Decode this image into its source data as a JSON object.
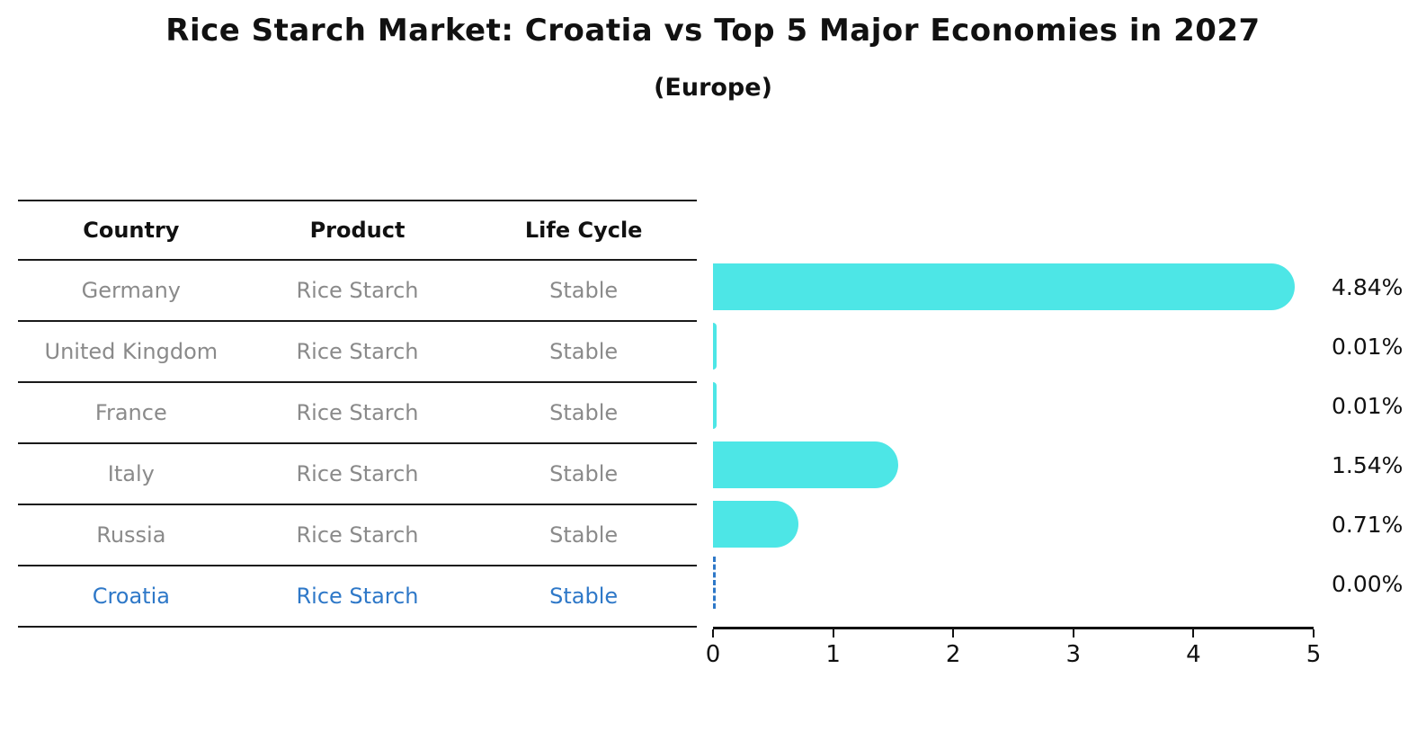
{
  "title": "Rice Starch Market: Croatia vs Top 5 Major Economies in 2027",
  "subtitle": "(Europe)",
  "table": {
    "columns": [
      "Country",
      "Product",
      "Life Cycle"
    ],
    "rows": [
      {
        "country": "Germany",
        "product": "Rice Starch",
        "life_cycle": "Stable",
        "highlight": false
      },
      {
        "country": "United Kingdom",
        "product": "Rice Starch",
        "life_cycle": "Stable",
        "highlight": false
      },
      {
        "country": "France",
        "product": "Rice Starch",
        "life_cycle": "Stable",
        "highlight": false
      },
      {
        "country": "Italy",
        "product": "Rice Starch",
        "life_cycle": "Stable",
        "highlight": false
      },
      {
        "country": "Russia",
        "product": "Rice Starch",
        "life_cycle": "Stable",
        "highlight": false
      },
      {
        "country": "Croatia",
        "product": "Rice Starch",
        "life_cycle": "Stable",
        "highlight": true
      }
    ]
  },
  "chart_data": {
    "type": "bar",
    "orientation": "horizontal",
    "title": "Rice Starch Market: Croatia vs Top 5 Major Economies in 2027",
    "subtitle": "(Europe)",
    "categories": [
      "Germany",
      "United Kingdom",
      "France",
      "Italy",
      "Russia",
      "Croatia"
    ],
    "values": [
      4.84,
      0.01,
      0.01,
      1.54,
      0.71,
      0.0
    ],
    "value_labels": [
      "4.84%",
      "0.01%",
      "0.01%",
      "1.54%",
      "0.71%",
      "0.00%"
    ],
    "unit": "%",
    "xlabel": "",
    "ylabel": "",
    "xlim": [
      0,
      5
    ],
    "x_ticks": [
      0,
      1,
      2,
      3,
      4,
      5
    ],
    "grid": false,
    "legend": false,
    "highlight_index": 5,
    "highlight_style": "dashed-zero-line"
  },
  "colors": {
    "bar": "#4de6e6",
    "accent_blue": "#2e78c8",
    "muted_text": "#8a8a8a",
    "text": "#111111",
    "line": "#1a1a1a",
    "background": "#ffffff"
  }
}
